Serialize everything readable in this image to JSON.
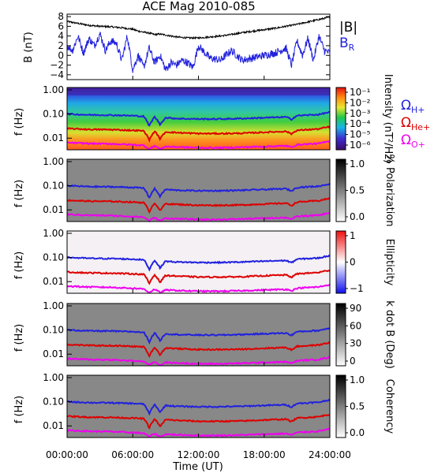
{
  "chart_data": [
    {
      "type": "line",
      "title": "ACE Mag 2010-085",
      "ylabel": "B (nT)",
      "ylim": [
        -5,
        8.5
      ],
      "yticks": [
        "8",
        "6",
        "4",
        "2",
        "0",
        "−2",
        "−4"
      ],
      "ytick_values": [
        8,
        6,
        4,
        2,
        0,
        -2,
        -4
      ],
      "xlim": [
        0,
        24
      ],
      "legend": [
        {
          "label": "|B|",
          "color": "#000000"
        },
        {
          "label": "B",
          "sub": "R",
          "color": "#2222dd"
        }
      ],
      "series": [
        {
          "name": "|B|",
          "color": "#000000",
          "x": [
            0,
            1,
            2,
            3,
            4,
            5,
            6,
            6.5,
            7,
            7.5,
            8,
            8.5,
            9,
            10,
            11,
            12,
            13,
            14,
            15,
            16,
            17,
            18,
            19,
            20,
            21,
            22,
            23,
            24
          ],
          "values": [
            7.0,
            6.6,
            6.2,
            6.0,
            5.9,
            5.7,
            5.4,
            5.0,
            4.8,
            4.6,
            4.3,
            4.4,
            4.2,
            3.8,
            3.6,
            3.6,
            3.8,
            4.0,
            4.3,
            4.7,
            5.0,
            5.3,
            5.6,
            6.0,
            6.4,
            6.9,
            7.4,
            7.9
          ]
        },
        {
          "name": "B_R",
          "color": "#2222dd",
          "x": [
            0,
            0.5,
            1,
            1.5,
            2,
            2.5,
            3,
            3.5,
            4,
            4.5,
            5,
            5.5,
            6,
            6.5,
            7,
            7.5,
            8,
            8.5,
            9,
            9.5,
            10,
            10.5,
            11,
            11.5,
            12,
            13,
            14,
            15,
            16,
            17,
            18,
            19,
            20,
            20.5,
            21,
            21.5,
            22,
            22.5,
            23,
            23.5,
            24
          ],
          "values": [
            2.0,
            1.0,
            4.0,
            0.5,
            3.5,
            2.0,
            4.5,
            1.0,
            3.0,
            2.5,
            -1.0,
            4.0,
            -3.0,
            0.0,
            -2.5,
            1.5,
            -1.5,
            0.0,
            -3.0,
            -1.5,
            -2.0,
            -1.0,
            -1.5,
            -2.5,
            2.0,
            -0.5,
            -1.0,
            1.0,
            -1.0,
            -0.5,
            0.0,
            0.5,
            1.5,
            -2.0,
            3.0,
            0.0,
            3.5,
            -1.0,
            4.0,
            1.0,
            0.5
          ]
        }
      ]
    },
    {
      "type": "heatmap",
      "ylabel": "f (Hz)",
      "yticks": [
        "1.00",
        "0.10",
        "0.01"
      ],
      "cbar_label": "Intensity (nT²/Hz)",
      "cbar_ticks": [
        "10⁻¹",
        "10⁻²",
        "10⁻³",
        "10⁻⁴",
        "10⁻⁵",
        "10⁻⁶"
      ],
      "legend": [
        {
          "label": "Ω",
          "sub": "H+",
          "color": "#2222dd"
        },
        {
          "label": "Ω",
          "sub": "He+",
          "color": "#dd0000"
        },
        {
          "label": "Ω",
          "sub": "O+",
          "color": "#ee00ee"
        }
      ]
    },
    {
      "type": "heatmap",
      "ylabel": "f (Hz)",
      "yticks": [
        "1.00",
        "0.10",
        "0.01"
      ],
      "cbar_label": "% Polarization",
      "cbar_ticks": [
        "1.0",
        "0.5",
        "0.0"
      ]
    },
    {
      "type": "heatmap",
      "ylabel": "f (Hz)",
      "yticks": [
        "1.00",
        "0.10",
        "0.01"
      ],
      "cbar_label": "Ellipticity",
      "cbar_ticks": [
        "1",
        "0",
        "−1"
      ]
    },
    {
      "type": "heatmap",
      "ylabel": "f (Hz)",
      "yticks": [
        "1.00",
        "0.10",
        "0.01"
      ],
      "cbar_label": "k dot B (Deg)",
      "cbar_ticks": [
        "90",
        "60",
        "30",
        "0"
      ]
    },
    {
      "type": "heatmap",
      "ylabel": "f (Hz)",
      "yticks": [
        "1.00",
        "0.10",
        "0.01"
      ],
      "cbar_label": "Coherency",
      "cbar_ticks": [
        "1.0",
        "0.5",
        "0.0"
      ]
    }
  ],
  "gyro_lines": {
    "x": [
      0,
      2,
      4,
      6,
      7,
      7.5,
      8,
      8.5,
      9,
      10,
      12,
      14,
      16,
      18,
      20,
      20.5,
      21,
      22,
      23,
      24
    ],
    "H_plus": [
      0.1,
      0.092,
      0.09,
      0.085,
      0.08,
      0.03,
      0.075,
      0.035,
      0.07,
      0.065,
      0.062,
      0.062,
      0.065,
      0.07,
      0.075,
      0.06,
      0.085,
      0.09,
      0.095,
      0.12
    ],
    "He_plus": [
      0.025,
      0.023,
      0.0225,
      0.021,
      0.02,
      0.008,
      0.019,
      0.009,
      0.018,
      0.017,
      0.0155,
      0.0155,
      0.016,
      0.0175,
      0.019,
      0.015,
      0.021,
      0.0225,
      0.024,
      0.03
    ],
    "O_plus": [
      0.0065,
      0.006,
      0.0058,
      0.0053,
      0.005,
      0.0035,
      0.0048,
      0.0035,
      0.0045,
      0.0043,
      0.004,
      0.004,
      0.0042,
      0.0045,
      0.0048,
      0.0042,
      0.0053,
      0.0057,
      0.006,
      0.0075
    ]
  },
  "xaxis": {
    "label": "Time (UT)",
    "ticks": [
      "00:00:00",
      "06:00:00",
      "12:00:00",
      "18:00:00",
      "24:00:00"
    ],
    "tick_hours": [
      0,
      6,
      12,
      18,
      24
    ]
  }
}
